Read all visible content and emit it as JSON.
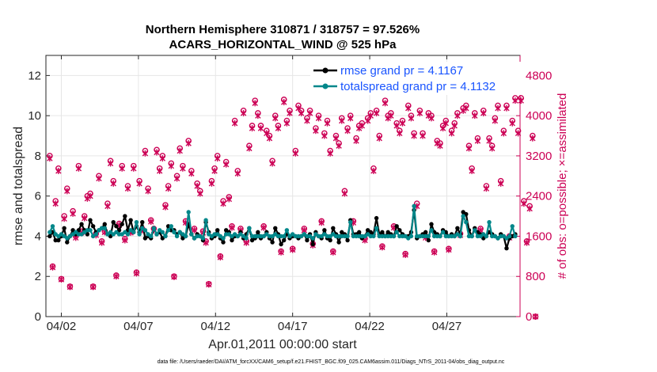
{
  "chart_data": {
    "type": "line",
    "title_line1": "Northern Hemisphere 310871 / 318757 = 97.526%",
    "title_line2": "ACARS_HORIZONTAL_WIND @ 525 hPa",
    "xlabel": "Apr.01,2011 00:00:00 start",
    "ylabel_left": "rmse and totalspread",
    "ylabel_right": "# of obs: o=possible; ×=assimilated",
    "xlim": [
      1,
      31.75
    ],
    "ylim_left": [
      0,
      13
    ],
    "ylim_right": [
      0,
      5200
    ],
    "x_ticks": [
      2,
      7,
      12,
      17,
      22,
      27
    ],
    "x_tick_labels": [
      "04/02",
      "04/07",
      "04/12",
      "04/17",
      "04/22",
      "04/27"
    ],
    "y_ticks_left": [
      0,
      2,
      4,
      6,
      8,
      10,
      12
    ],
    "y_tick_labels_left": [
      "0",
      "2",
      "4",
      "6",
      "8",
      "10",
      "12"
    ],
    "y_ticks_right": [
      0,
      800,
      1600,
      2400,
      3200,
      4000,
      4800
    ],
    "y_tick_labels_right": [
      "0",
      "800",
      "1600",
      "2400",
      "3200",
      "4000",
      "4800"
    ],
    "grid": true,
    "footnote": "data file: /Users/raeder/DAI/ATM_forcXX/CAM6_setup/f.e21.FHIST_BGC.f09_025.CAM6assim.011/Diags_NTrS_2011-04/obs_diag_output.nc",
    "series": [
      {
        "name": "rmse grand pr = 4.1167",
        "color": "#000000",
        "marker": "circle",
        "values": [
          4.0,
          4.2,
          3.8,
          3.8,
          4.0,
          4.4,
          3.7,
          4.0,
          4.3,
          4.1,
          4.3,
          4.6,
          4.3,
          4.1,
          4.8,
          4.5,
          4.2,
          4.3,
          4.4,
          4.6,
          4.1,
          4.0,
          4.7,
          4.5,
          4.3,
          4.6,
          5.0,
          4.3,
          4.8,
          4.2,
          4.5,
          4.2,
          4.7,
          3.9,
          4.0,
          3.9,
          4.4,
          4.1,
          4.2,
          3.9,
          4.0,
          4.5,
          4.3,
          4.3,
          4.1,
          4.2,
          3.9,
          4.0,
          4.6,
          4.1,
          3.9,
          4.1,
          4.0,
          3.8,
          4.7,
          4.2,
          3.9,
          4.0,
          4.3,
          3.9,
          3.7,
          4.3,
          4.2,
          3.8,
          4.0,
          4.0,
          4.2,
          3.9,
          4.1,
          4.4,
          3.8,
          3.9,
          4.2,
          3.9,
          4.0,
          4.2,
          3.9,
          3.7,
          4.4,
          4.1,
          3.6,
          3.8,
          4.1,
          3.9,
          4.0,
          4.0,
          3.9,
          4.0,
          4.1,
          3.8,
          4.1,
          3.6,
          4.2,
          4.0,
          3.9,
          4.3,
          3.9,
          3.8,
          4.4,
          4.1,
          3.7,
          4.2,
          4.1,
          3.8,
          4.8,
          4.1,
          4.1,
          4.2,
          3.9,
          4.0,
          4.3,
          4.2,
          4.1,
          4.9,
          4.1,
          4.2,
          4.0,
          4.2,
          4.1,
          4.0,
          4.5,
          4.3,
          4.1,
          4.0,
          4.0,
          4.2,
          5.3,
          3.9,
          4.0,
          4.1,
          4.2,
          3.8,
          4.6,
          4.2,
          4.1,
          4.0,
          4.3,
          4.2,
          4.0,
          4.1,
          4.0,
          4.4,
          4.1,
          5.2,
          5.1,
          4.3,
          4.0,
          4.4,
          4.2,
          4.1,
          3.9,
          4.0,
          4.2,
          4.1,
          4.0,
          3.9,
          4.1,
          4.0,
          3.4,
          3.9,
          4.0,
          4.1
        ]
      },
      {
        "name": "totalspread grand pr = 4.1132",
        "color": "#00878a",
        "marker": "circle",
        "values": [
          4.2,
          4.5,
          4.1,
          4.0,
          4.1,
          4.0,
          3.9,
          4.0,
          4.1,
          4.2,
          4.1,
          4.1,
          4.2,
          4.3,
          4.3,
          4.0,
          4.1,
          4.3,
          4.4,
          4.4,
          4.1,
          4.2,
          4.1,
          4.2,
          4.1,
          4.1,
          4.2,
          4.1,
          4.3,
          4.2,
          4.7,
          4.1,
          4.4,
          4.3,
          4.1,
          4.0,
          4.4,
          4.1,
          4.3,
          4.2,
          4.0,
          4.3,
          4.5,
          4.2,
          4.0,
          4.2,
          4.1,
          4.0,
          5.2,
          4.1,
          3.9,
          4.0,
          4.0,
          3.9,
          4.8,
          4.1,
          4.0,
          4.1,
          4.1,
          4.0,
          3.9,
          4.1,
          4.1,
          4.0,
          4.1,
          4.0,
          4.1,
          4.0,
          3.9,
          4.4,
          4.0,
          4.0,
          4.0,
          4.0,
          4.0,
          4.1,
          4.0,
          4.0,
          4.1,
          4.0,
          4.0,
          4.0,
          4.3,
          4.0,
          4.1,
          4.0,
          4.0,
          4.0,
          4.1,
          4.0,
          4.0,
          3.9,
          4.1,
          4.0,
          4.0,
          4.1,
          4.0,
          4.0,
          4.1,
          4.0,
          4.0,
          4.0,
          4.0,
          4.0,
          4.7,
          4.0,
          4.0,
          4.0,
          4.0,
          4.0,
          4.1,
          4.0,
          4.0,
          4.4,
          4.0,
          4.0,
          4.0,
          4.0,
          4.0,
          4.0,
          4.2,
          4.0,
          4.0,
          4.0,
          3.9,
          4.0,
          5.5,
          4.0,
          4.0,
          4.0,
          4.0,
          4.0,
          4.3,
          4.0,
          4.0,
          4.0,
          4.2,
          4.0,
          4.0,
          4.0,
          4.0,
          4.1,
          4.0,
          5.0,
          4.7,
          4.0,
          4.0,
          4.3,
          4.0,
          4.0,
          4.1,
          4.0,
          4.7,
          4.0,
          4.0,
          3.9,
          4.0,
          4.0,
          3.9,
          4.0,
          4.5,
          4.0
        ]
      },
      {
        "name": "possible",
        "color": "#cc0055",
        "marker": "o",
        "axis": "right",
        "values": [
          3200,
          1000,
          2300,
          2950,
          750,
          2000,
          2550,
          600,
          2100,
          1600,
          3000,
          1700,
          2000,
          2400,
          2450,
          600,
          1650,
          2800,
          1500,
          1700,
          2250,
          3100,
          2700,
          820,
          1850,
          3000,
          1550,
          2600,
          1700,
          3000,
          880,
          2700,
          1750,
          3300,
          2550,
          1920,
          1750,
          3320,
          2950,
          3200,
          2220,
          2600,
          3050,
          800,
          2800,
          3350,
          3000,
          1900,
          3500,
          2900,
          1750,
          2650,
          2500,
          1700,
          1500,
          650,
          2700,
          2950,
          3200,
          1200,
          2300,
          3080,
          2380,
          1800,
          3900,
          2900,
          1750,
          4100,
          1500,
          3400,
          3800,
          4300,
          4050,
          3800,
          1800,
          3700,
          3600,
          3100,
          4000,
          3800,
          1300,
          4320,
          3900,
          4100,
          1350,
          3300,
          4200,
          4100,
          1750,
          3950,
          4100,
          1450,
          3750,
          4000,
          1900,
          3650,
          3900,
          3300,
          1300,
          3600,
          3450,
          3950,
          2500,
          3750,
          4000,
          1900,
          3550,
          3800,
          3850,
          1550,
          3950,
          4050,
          2950,
          4100,
          3600,
          1400,
          4300,
          4000,
          4050,
          1800,
          3850,
          3700,
          3900,
          1250,
          4200,
          4000,
          3650,
          2250,
          4100,
          3650,
          1600,
          4050,
          4000,
          1300,
          3500,
          3450,
          3800,
          3900,
          1350,
          3700,
          3850,
          4050,
          1650,
          4150,
          4200,
          3400,
          2950,
          4050,
          3550,
          1750,
          4100,
          2600,
          3550,
          3400,
          3950,
          4200,
          2700,
          3700,
          4200,
          1600,
          3900,
          4350,
          3700,
          4350,
          2300,
          1500,
          2200,
          3600,
          0
        ]
      },
      {
        "name": "assimilated",
        "color": "#cc0055",
        "marker": "x",
        "axis": "right",
        "values": [
          3150,
          980,
          2250,
          2900,
          740,
          1950,
          2500,
          590,
          2050,
          1570,
          2950,
          1670,
          1960,
          2350,
          2400,
          590,
          1620,
          2750,
          1470,
          1680,
          2200,
          3050,
          2650,
          800,
          1820,
          2950,
          1520,
          2550,
          1670,
          2950,
          860,
          2650,
          1720,
          3250,
          2500,
          1890,
          1720,
          3270,
          2900,
          3150,
          2180,
          2550,
          3000,
          790,
          2750,
          3300,
          2950,
          1870,
          3450,
          2850,
          1720,
          2600,
          2450,
          1670,
          1470,
          640,
          2650,
          2900,
          3150,
          1180,
          2250,
          3030,
          2340,
          1770,
          3850,
          2850,
          1720,
          4050,
          1470,
          3350,
          3750,
          4250,
          4000,
          3750,
          1770,
          3650,
          3550,
          3050,
          3950,
          3750,
          1280,
          4270,
          3850,
          4050,
          1330,
          3250,
          4150,
          4050,
          1720,
          3900,
          4050,
          1420,
          3700,
          3950,
          1870,
          3600,
          3850,
          3250,
          1280,
          3550,
          3400,
          3900,
          2450,
          3700,
          3950,
          1870,
          3500,
          3750,
          3800,
          1520,
          3900,
          4000,
          2900,
          4050,
          3550,
          1380,
          4250,
          3950,
          4000,
          1770,
          3800,
          3650,
          3850,
          1230,
          4150,
          3950,
          3600,
          2200,
          4050,
          3600,
          1570,
          4000,
          3950,
          1280,
          3450,
          3400,
          3750,
          3850,
          1330,
          3650,
          3800,
          4000,
          1620,
          4100,
          4150,
          3350,
          2900,
          4000,
          3500,
          1720,
          4050,
          2550,
          3500,
          3350,
          3900,
          4150,
          2650,
          3650,
          4150,
          1570,
          3850,
          4300,
          3650,
          4300,
          2250,
          1470,
          2150,
          3550,
          0
        ]
      }
    ],
    "x_start": 1.25,
    "x_step": 0.1875
  }
}
